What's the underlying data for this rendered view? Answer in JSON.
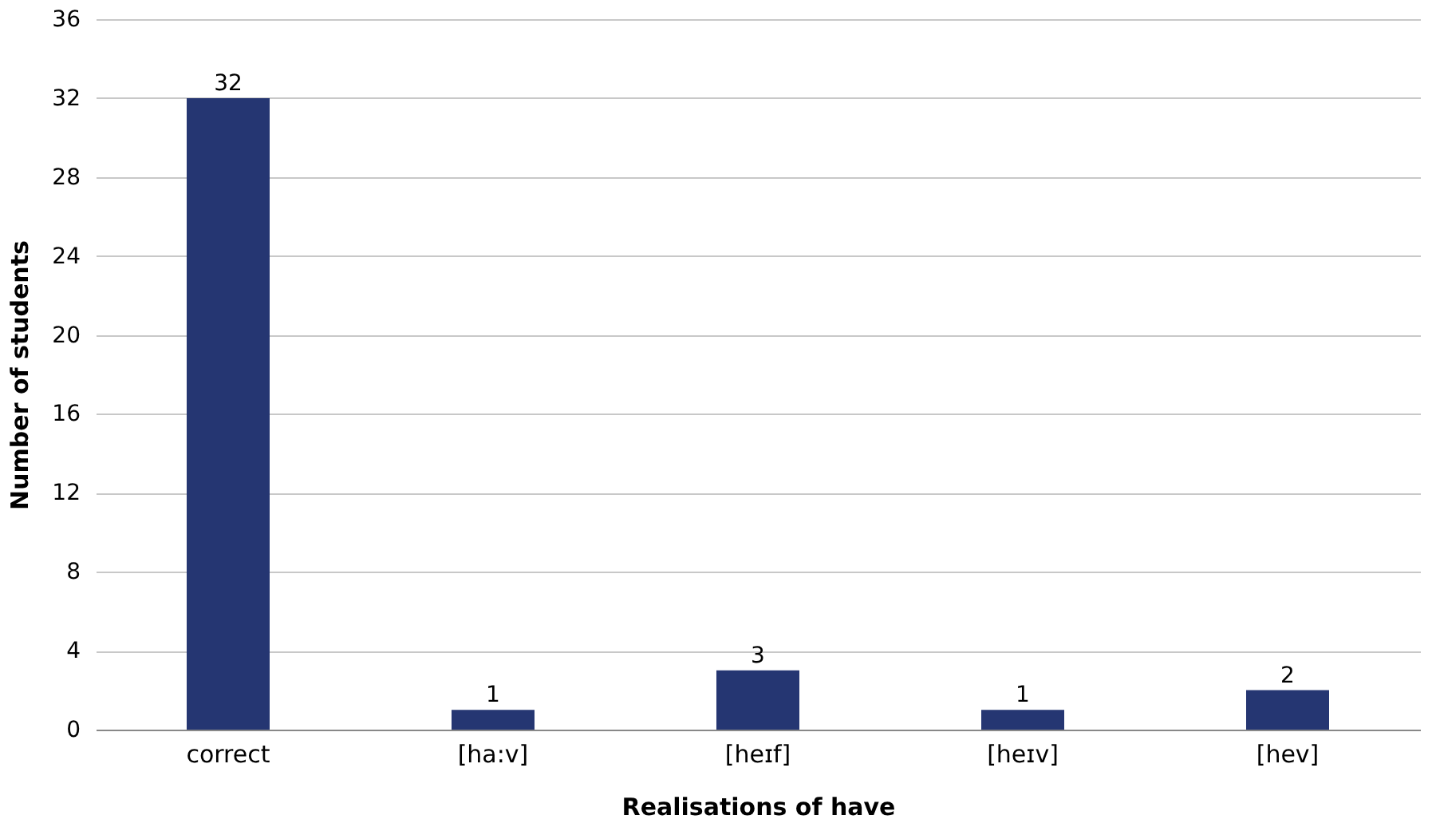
{
  "chart_data": {
    "type": "bar",
    "xlabel": "Realisations of have",
    "ylabel": "Number of students",
    "categories": [
      "correct",
      "[ha:v]",
      "[heɪf]",
      "[heɪv]",
      "[hev]"
    ],
    "values": [
      32,
      1,
      3,
      1,
      2
    ],
    "color": "#253672",
    "data_labels": true,
    "ylim": [
      0,
      36
    ],
    "yticks": [
      0,
      4,
      8,
      12,
      16,
      20,
      24,
      28,
      32,
      36
    ],
    "grid": "y"
  }
}
